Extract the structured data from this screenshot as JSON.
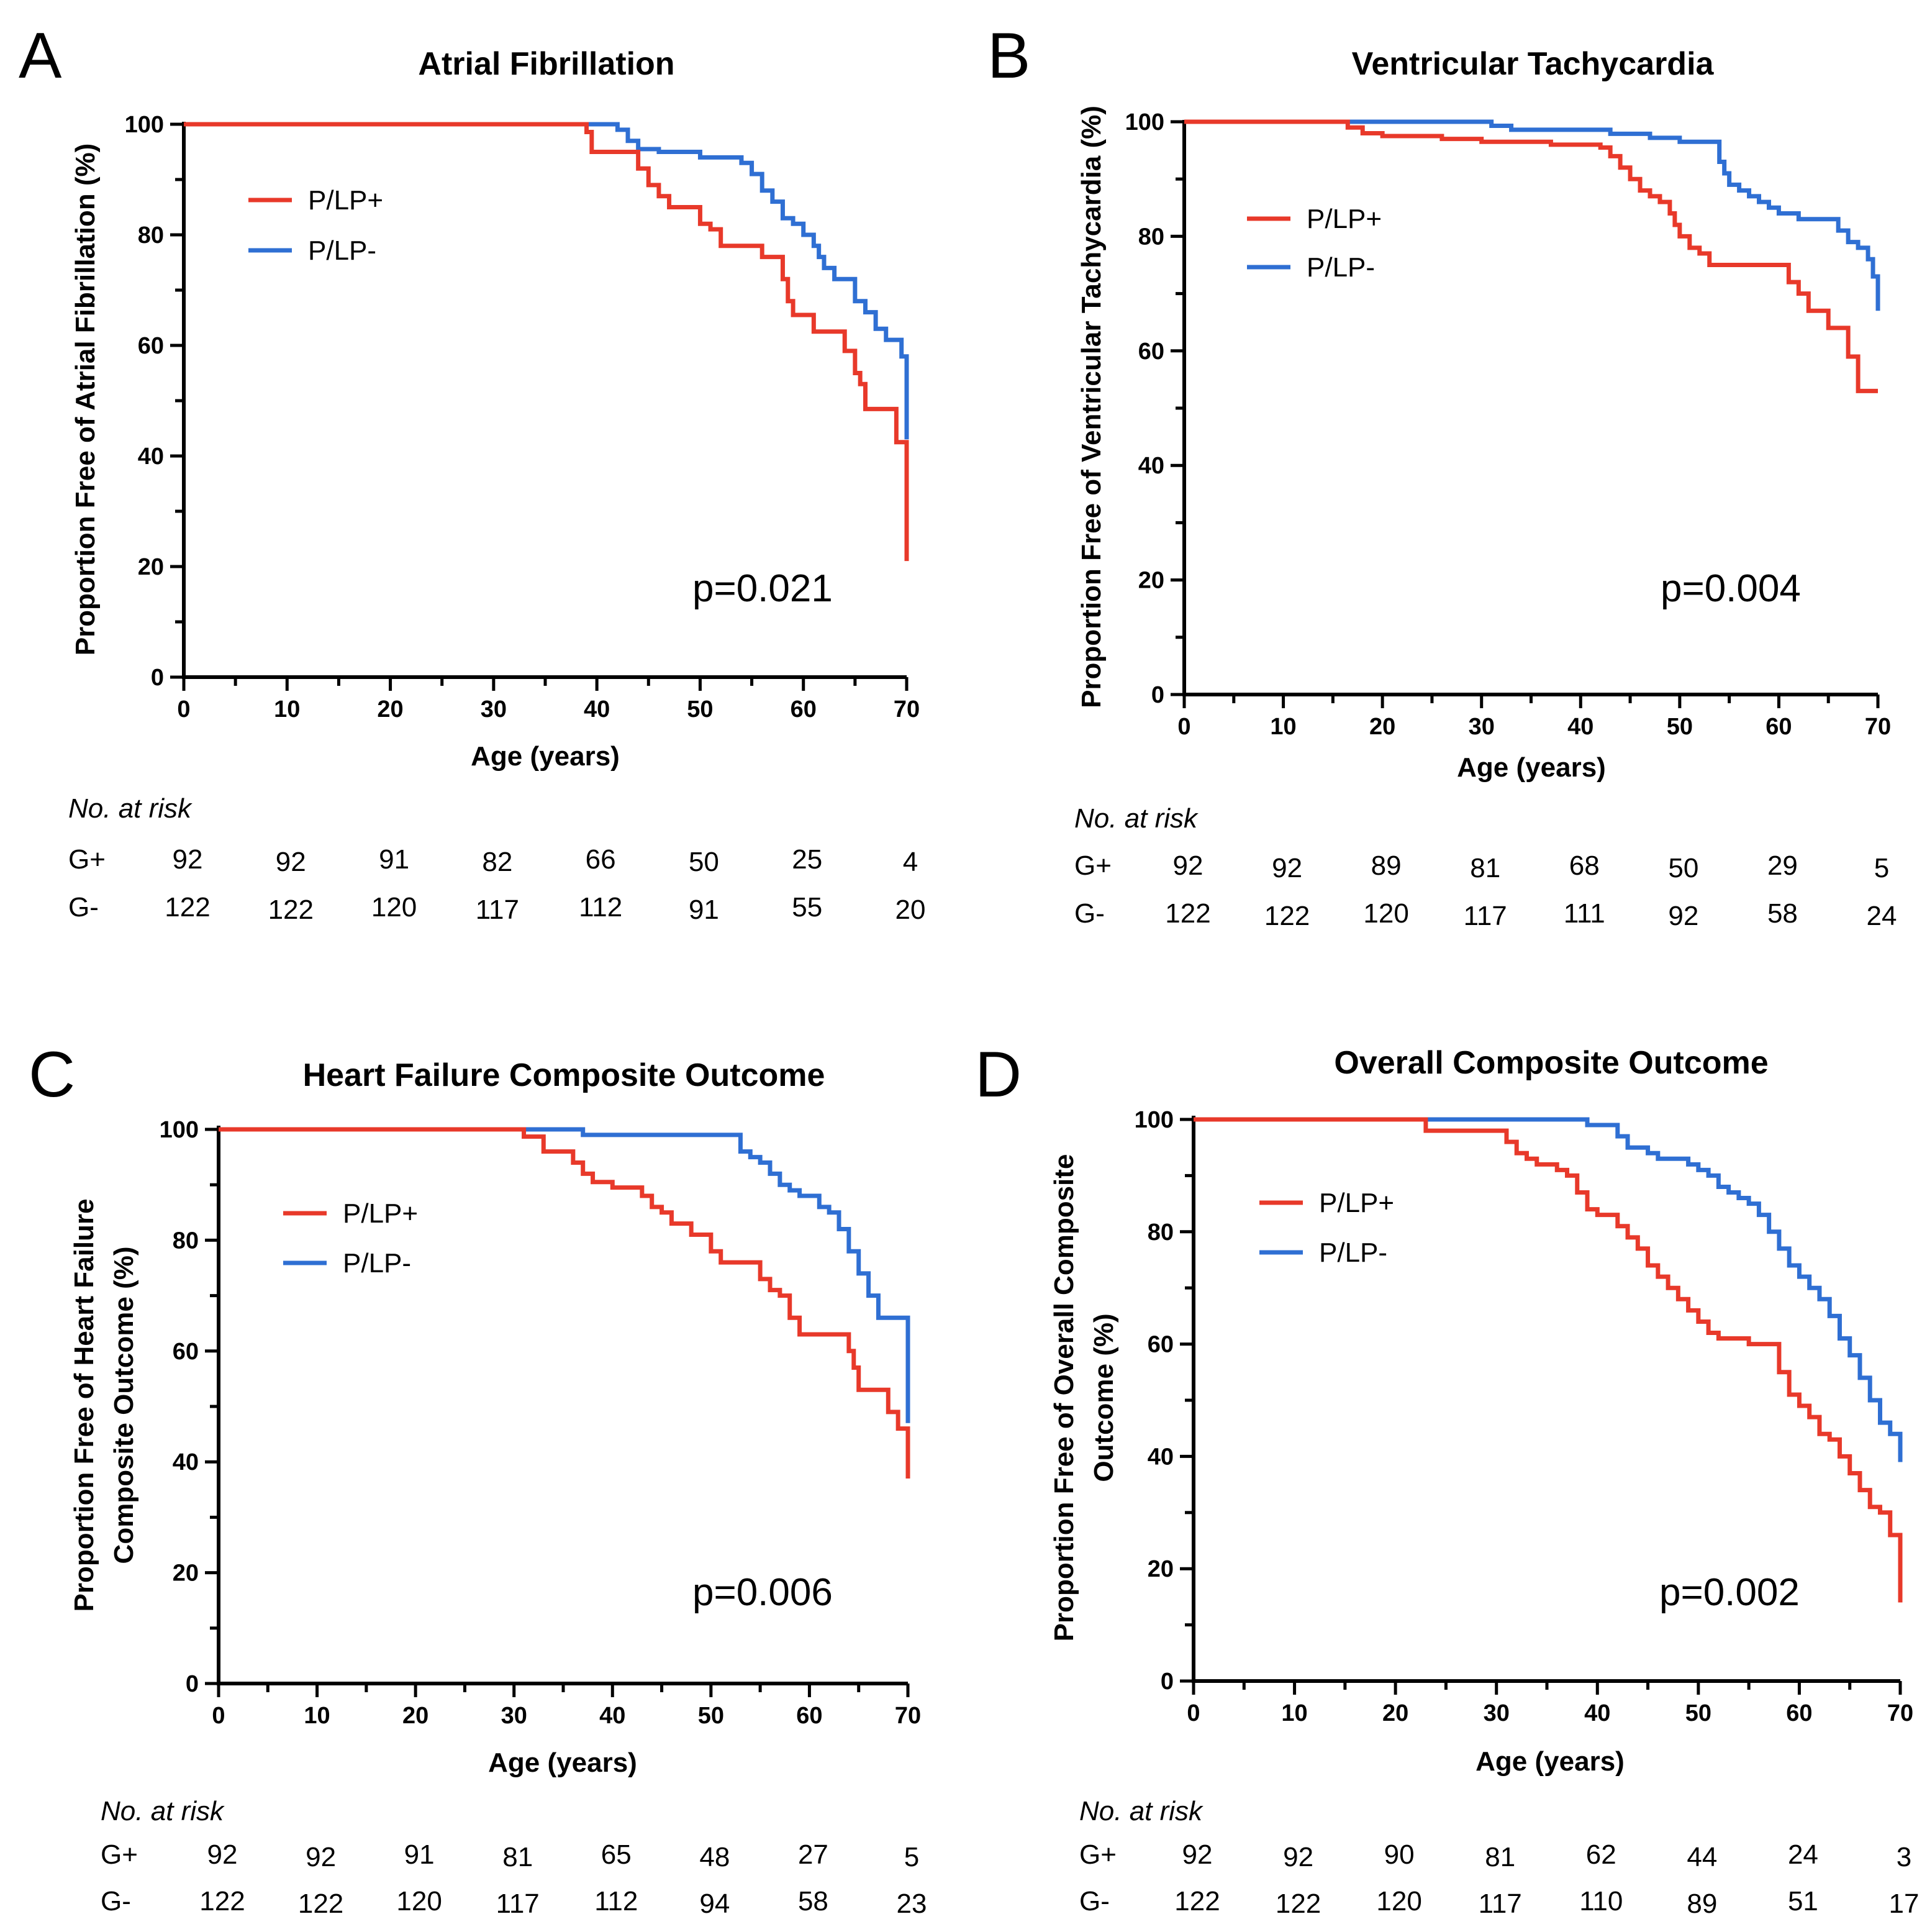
{
  "colors": {
    "g_plus": "#e8392a",
    "g_minus": "#2f6fd3",
    "axis": "#000000"
  },
  "chart_data": [
    {
      "type": "line",
      "panel_letter": "A",
      "title": "Atrial Fibrillation",
      "xlabel": "Age (years)",
      "ylabel_lines": [
        "Proportion Free of Atrial Fibrillation (%)"
      ],
      "xlim": [
        0,
        70
      ],
      "ylim": [
        0,
        100
      ],
      "xticks": [
        "0",
        "10",
        "20",
        "30",
        "40",
        "50",
        "60",
        "70"
      ],
      "yticks": [
        "0",
        "20",
        "40",
        "60",
        "80",
        "100"
      ],
      "legend": [
        "P/LP+",
        "P/LP-"
      ],
      "p_value": "p=0.021",
      "series": [
        {
          "name": "P/LP+",
          "x": [
            0,
            32,
            39,
            39.5,
            43,
            44,
            45,
            46,
            47,
            48,
            50,
            51,
            52,
            56,
            58,
            58.5,
            59,
            61,
            62,
            64,
            65,
            65.5,
            66,
            68,
            69,
            70,
            70
          ],
          "y": [
            100,
            100,
            98.6,
            95,
            95,
            92,
            89,
            87,
            85,
            85,
            82,
            81,
            78,
            76,
            72,
            68,
            65.5,
            62.5,
            62.5,
            59,
            55,
            53,
            48.5,
            48.5,
            42.5,
            42.5,
            21
          ]
        },
        {
          "name": "P/LP-",
          "x": [
            0,
            40,
            42,
            43,
            44,
            45,
            46,
            48,
            50,
            52,
            54,
            55,
            56,
            57,
            58,
            59,
            60,
            61,
            61.5,
            62,
            63,
            64,
            65,
            66,
            67,
            68,
            69,
            69.5,
            70,
            70
          ],
          "y": [
            100,
            100,
            99,
            97,
            95.5,
            95.5,
            95,
            95,
            94,
            94,
            93,
            91,
            88,
            86,
            83,
            82,
            80,
            78,
            76,
            74,
            72,
            72,
            68,
            66,
            63,
            61,
            61,
            58,
            58,
            43
          ]
        }
      ],
      "risk_table": {
        "header": "No. at risk",
        "rows": [
          {
            "label": "G+",
            "values": [
              "92",
              "92",
              "91",
              "82",
              "66",
              "50",
              "25",
              "4"
            ]
          },
          {
            "label": "G-",
            "values": [
              "122",
              "122",
              "120",
              "117",
              "112",
              "91",
              "55",
              "20"
            ]
          }
        ]
      }
    },
    {
      "type": "line",
      "panel_letter": "B",
      "title": "Ventricular Tachycardia",
      "xlabel": "Age (years)",
      "ylabel_lines": [
        "Proportion Free of  Ventricular Tachycardia (%)"
      ],
      "xlim": [
        0,
        70
      ],
      "ylim": [
        0,
        100
      ],
      "xticks": [
        "0",
        "10",
        "20",
        "30",
        "40",
        "50",
        "60",
        "70"
      ],
      "yticks": [
        "0",
        "20",
        "40",
        "60",
        "80",
        "100"
      ],
      "legend": [
        "P/LP+",
        "P/LP-"
      ],
      "p_value": "p=0.004",
      "series": [
        {
          "name": "P/LP+",
          "x": [
            0,
            16,
            16.5,
            18,
            20,
            26,
            30,
            37,
            42,
            43,
            44,
            45,
            46,
            47,
            48,
            49,
            49.5,
            50,
            51,
            52,
            53,
            60,
            61,
            62,
            63,
            65,
            67,
            68,
            70
          ],
          "y": [
            100,
            100,
            99,
            98,
            97.5,
            97,
            96.5,
            96,
            95.5,
            94,
            92,
            90,
            88,
            87,
            86,
            84,
            82,
            80,
            78,
            77,
            75,
            75,
            72,
            70,
            67,
            64,
            59,
            53,
            53
          ]
        },
        {
          "name": "P/LP-",
          "x": [
            0,
            30,
            31,
            33,
            38,
            43,
            47,
            49,
            50,
            53,
            54,
            54.5,
            55,
            56,
            57,
            58,
            59,
            60,
            62,
            66,
            67,
            68,
            69,
            69.5,
            70,
            70
          ],
          "y": [
            100,
            100,
            99.3,
            98.6,
            98.6,
            97.9,
            97.2,
            97.2,
            96.5,
            96.5,
            93,
            91,
            89,
            88,
            87,
            86,
            85,
            84,
            83,
            81,
            79,
            78,
            76,
            73,
            73,
            67
          ]
        }
      ],
      "risk_table": {
        "header": "No. at risk",
        "rows": [
          {
            "label": "G+",
            "values": [
              "92",
              "92",
              "89",
              "81",
              "68",
              "50",
              "29",
              "5"
            ]
          },
          {
            "label": "G-",
            "values": [
              "122",
              "122",
              "120",
              "117",
              "111",
              "92",
              "58",
              "24"
            ]
          }
        ]
      }
    },
    {
      "type": "line",
      "panel_letter": "C",
      "title": "Heart Failure Composite Outcome",
      "xlabel": "Age (years)",
      "ylabel_lines": [
        "Proportion Free of Heart Failure",
        "Composite Outcome (%)"
      ],
      "xlim": [
        0,
        70
      ],
      "ylim": [
        0,
        100
      ],
      "xticks": [
        "0",
        "10",
        "20",
        "30",
        "40",
        "50",
        "60",
        "70"
      ],
      "yticks": [
        "0",
        "20",
        "40",
        "60",
        "80",
        "100"
      ],
      "legend": [
        "P/LP+",
        "P/LP-"
      ],
      "p_value": "p=0.006",
      "series": [
        {
          "name": "P/LP+",
          "x": [
            0,
            23,
            31,
            33,
            35,
            36,
            37,
            38,
            40,
            43,
            44,
            45,
            46,
            48,
            50,
            51,
            54,
            55,
            56,
            57,
            58,
            59,
            60,
            63,
            64,
            64.5,
            65,
            67,
            68,
            69,
            70,
            70
          ],
          "y": [
            100,
            100,
            98.7,
            96,
            96,
            94,
            92,
            90.5,
            89.5,
            88,
            86,
            85,
            83,
            81,
            78,
            76,
            76,
            73,
            71,
            70,
            66,
            63,
            63,
            63,
            60,
            57,
            53,
            53,
            49,
            46,
            46,
            37
          ]
        },
        {
          "name": "P/LP-",
          "x": [
            0,
            36,
            37,
            52,
            53,
            54,
            55,
            56,
            57,
            58,
            59,
            60,
            61,
            62,
            63,
            64,
            65,
            66,
            67,
            68,
            69,
            70,
            70
          ],
          "y": [
            100,
            100,
            99,
            99,
            96,
            95,
            94,
            92,
            90,
            89,
            88,
            88,
            86,
            85,
            82,
            78,
            74,
            70,
            66,
            66,
            66,
            61,
            47
          ]
        }
      ],
      "risk_table": {
        "header": "No. at risk",
        "rows": [
          {
            "label": "G+",
            "values": [
              "92",
              "92",
              "91",
              "81",
              "65",
              "48",
              "27",
              "5"
            ]
          },
          {
            "label": "G-",
            "values": [
              "122",
              "122",
              "120",
              "117",
              "112",
              "94",
              "58",
              "23"
            ]
          }
        ]
      }
    },
    {
      "type": "line",
      "panel_letter": "D",
      "title": "Overall Composite Outcome",
      "xlabel": "Age (years)",
      "ylabel_lines": [
        "Proportion Free of  Overall Composite",
        "Outcome (%)"
      ],
      "xlim": [
        0,
        70
      ],
      "ylim": [
        0,
        100
      ],
      "xticks": [
        "0",
        "10",
        "20",
        "30",
        "40",
        "50",
        "60",
        "70"
      ],
      "yticks": [
        "0",
        "20",
        "40",
        "60",
        "80",
        "100"
      ],
      "legend": [
        "P/LP+",
        "P/LP-"
      ],
      "p_value": "p=0.002",
      "series": [
        {
          "name": "P/LP+",
          "x": [
            0,
            16,
            23,
            31,
            32,
            33,
            34,
            36,
            37,
            38,
            39,
            40,
            42,
            43,
            44,
            45,
            46,
            47,
            48,
            49,
            50,
            51,
            52,
            55,
            57,
            58,
            59,
            60,
            61,
            62,
            63,
            64,
            65,
            66,
            67,
            68,
            69,
            70,
            70
          ],
          "y": [
            100,
            100,
            98,
            96,
            94,
            93,
            92,
            91,
            90,
            87,
            84,
            83,
            81,
            79,
            77,
            74,
            72,
            70,
            68,
            66,
            64,
            62,
            61,
            60,
            60,
            55,
            51,
            49,
            47,
            44,
            43,
            40,
            37,
            34,
            31,
            30,
            26,
            22,
            14
          ]
        },
        {
          "name": "P/LP-",
          "x": [
            0,
            36,
            39,
            42,
            43,
            45,
            46,
            47,
            48,
            49,
            50,
            51,
            52,
            53,
            54,
            55,
            56,
            57,
            58,
            59,
            60,
            61,
            62,
            63,
            64,
            65,
            66,
            67,
            68,
            69,
            70,
            70
          ],
          "y": [
            100,
            100,
            99,
            97,
            95,
            94,
            93,
            93,
            93,
            92,
            91,
            90,
            88,
            87,
            86,
            85,
            83,
            80,
            77,
            74,
            72,
            70,
            68,
            65,
            61,
            58,
            54,
            50,
            46,
            44,
            43,
            39
          ]
        }
      ],
      "risk_table": {
        "header": "No. at risk",
        "rows": [
          {
            "label": "G+",
            "values": [
              "92",
              "92",
              "90",
              "81",
              "62",
              "44",
              "24",
              "3"
            ]
          },
          {
            "label": "G-",
            "values": [
              "122",
              "122",
              "120",
              "117",
              "110",
              "89",
              "51",
              "17"
            ]
          }
        ]
      }
    }
  ]
}
